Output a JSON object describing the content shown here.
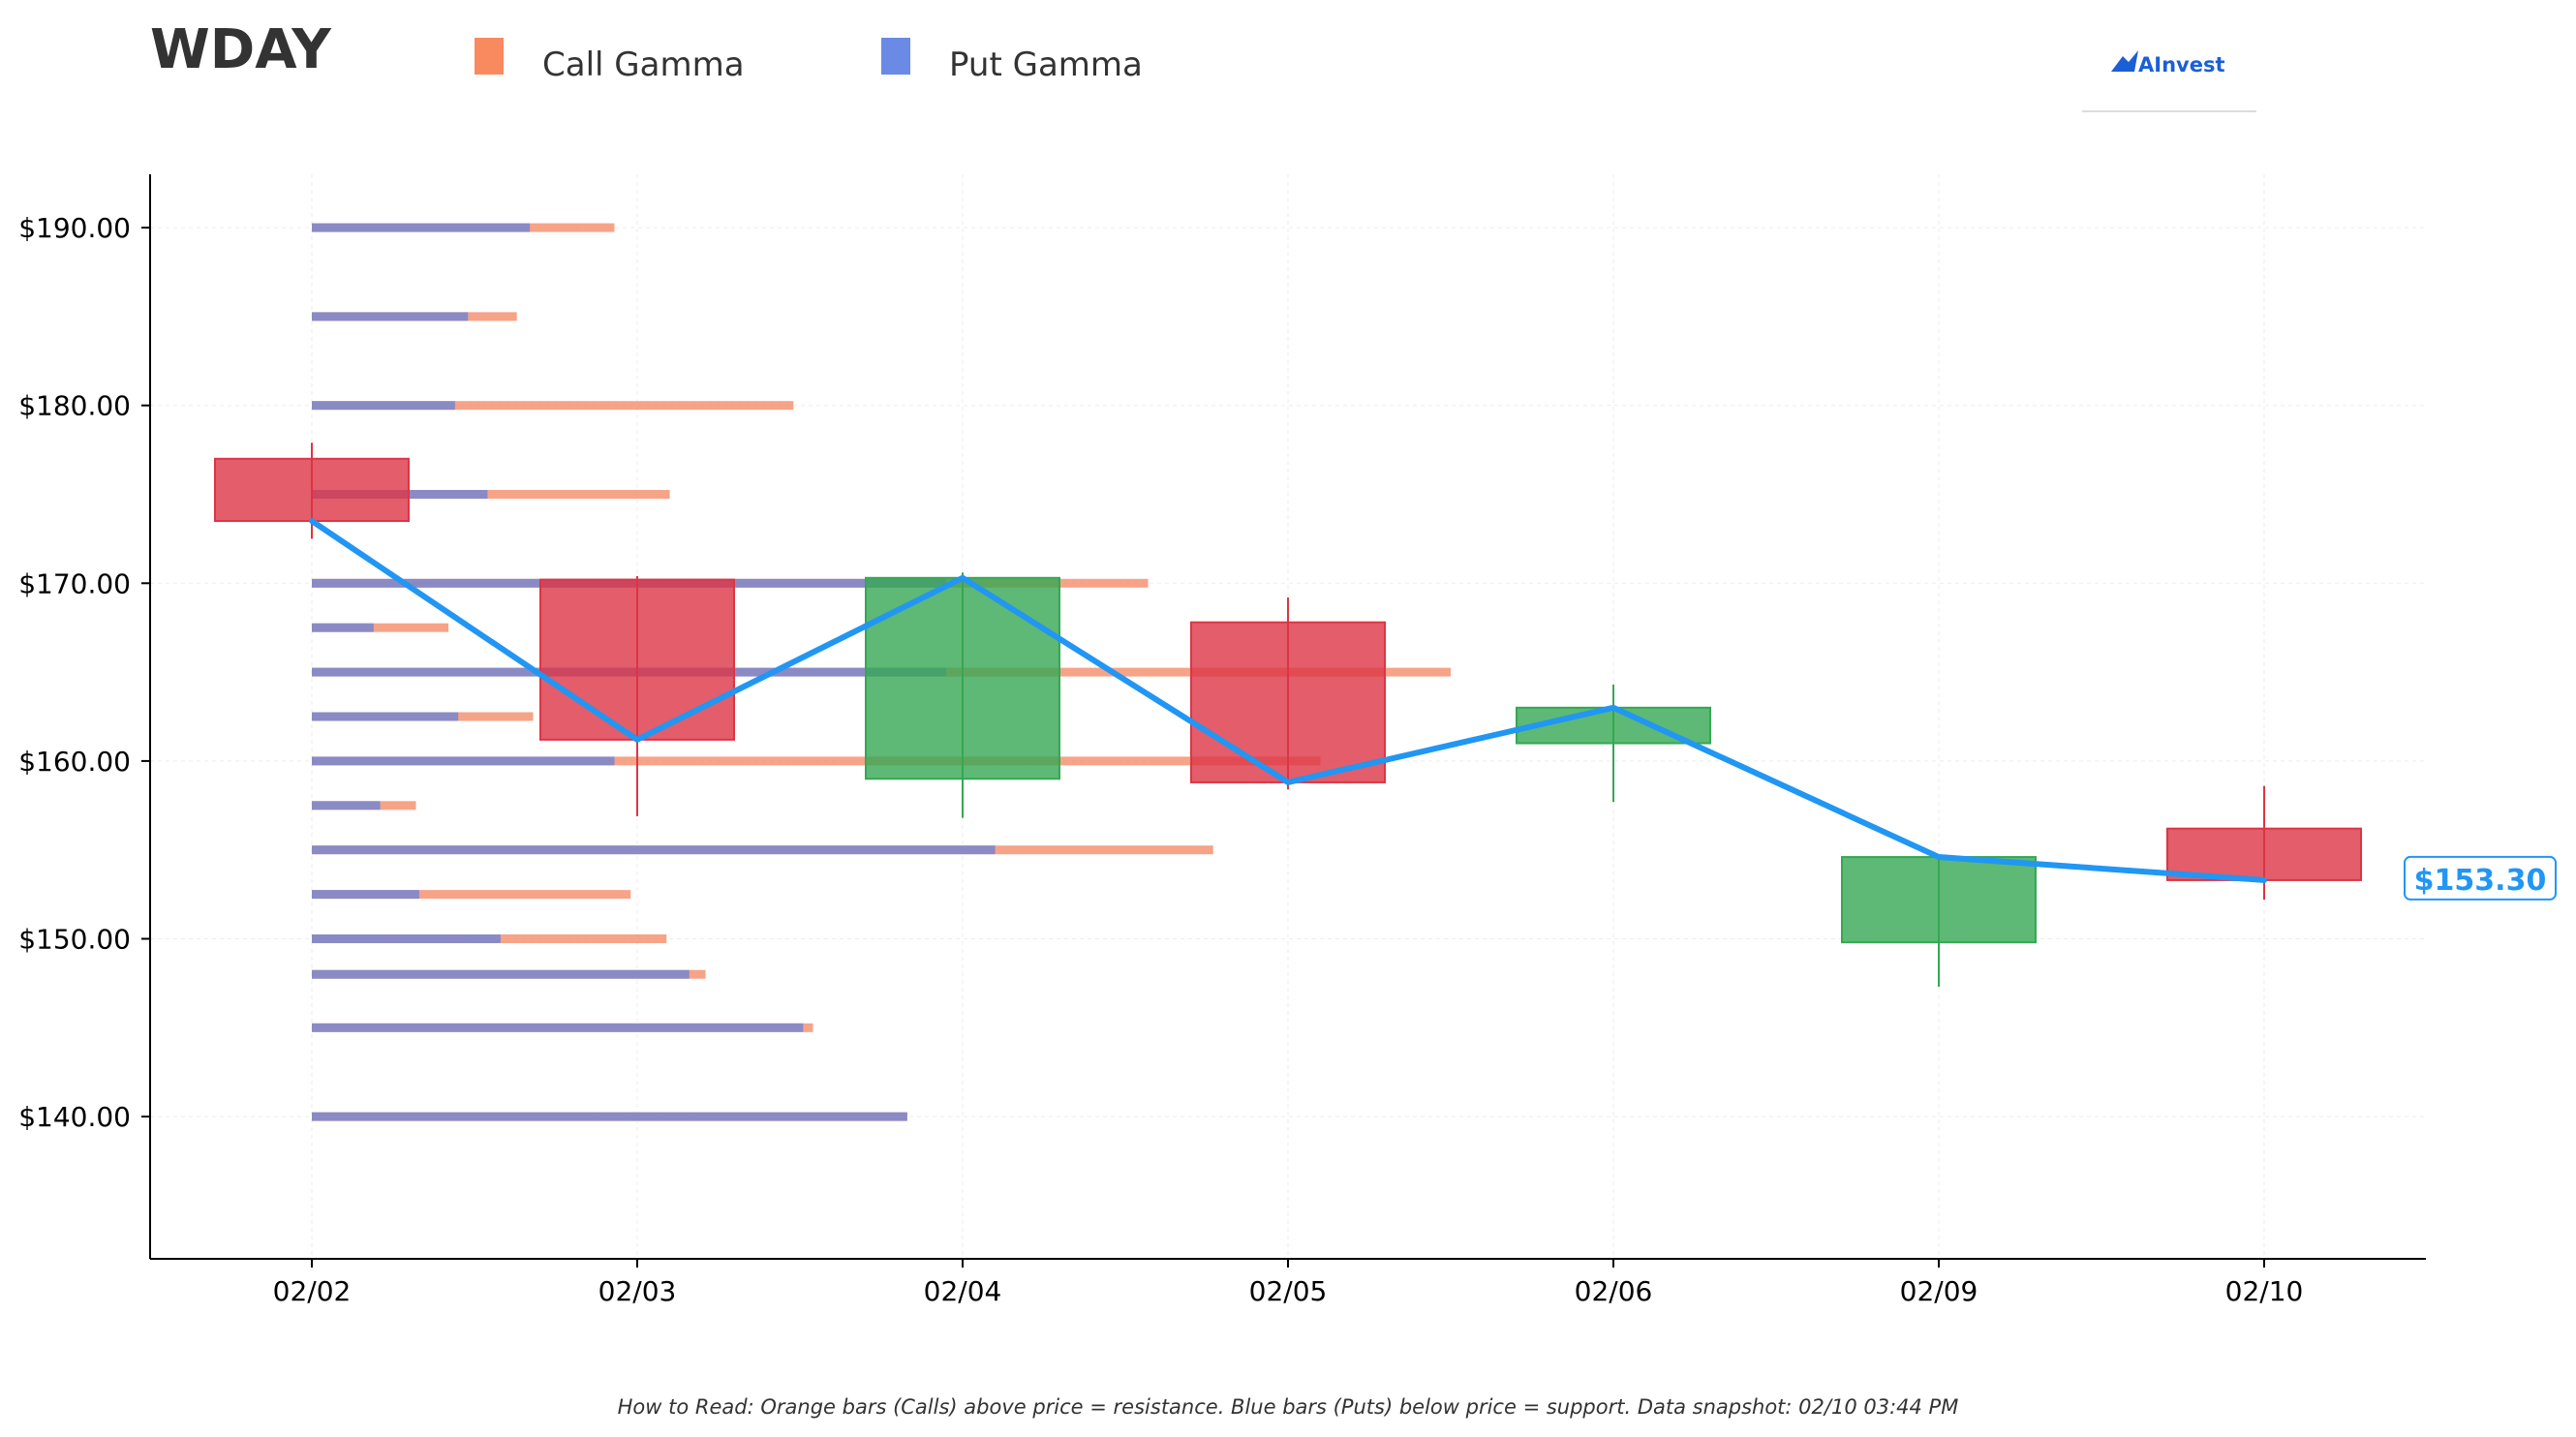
{
  "chart_data": {
    "type": "candlestick",
    "title": "WDAY",
    "legend": [
      "Call Gamma",
      "Put Gamma"
    ],
    "colors": {
      "call": "#f4845f",
      "put": "#5b7fe0",
      "up": "#34a853",
      "down": "#dc3545",
      "price_line": "#2196f3"
    },
    "ylim": [
      132,
      193
    ],
    "yticks": [
      {
        "value": 190,
        "label": "$190.00"
      },
      {
        "value": 180,
        "label": "$180.00"
      },
      {
        "value": 170,
        "label": "$170.00"
      },
      {
        "value": 160,
        "label": "$160.00"
      },
      {
        "value": 150,
        "label": "$150.00"
      },
      {
        "value": 140,
        "label": "$140.00"
      }
    ],
    "dates": [
      "02/02",
      "02/03",
      "02/04",
      "02/05",
      "02/06",
      "02/09",
      "02/10"
    ],
    "candles": [
      {
        "date": "02/02",
        "open": 177.0,
        "high": 177.9,
        "low": 172.5,
        "close": 173.5
      },
      {
        "date": "02/03",
        "open": 170.2,
        "high": 170.4,
        "low": 156.9,
        "close": 161.2
      },
      {
        "date": "02/04",
        "open": 159.0,
        "high": 170.6,
        "low": 156.8,
        "close": 170.3
      },
      {
        "date": "02/05",
        "open": 167.8,
        "high": 169.2,
        "low": 158.4,
        "close": 158.8
      },
      {
        "date": "02/06",
        "open": 161.0,
        "high": 164.3,
        "low": 157.7,
        "close": 163.0
      },
      {
        "date": "02/09",
        "open": 149.8,
        "high": 154.6,
        "low": 147.3,
        "close": 154.6
      },
      {
        "date": "02/10",
        "open": 156.2,
        "high": 158.6,
        "low": 152.2,
        "close": 153.3
      }
    ],
    "close_line": [
      173.5,
      161.2,
      170.3,
      158.8,
      163.0,
      154.6,
      153.3
    ],
    "last_price_label": "$153.30",
    "gamma_levels": [
      {
        "strike": 190.0,
        "put": 0.67,
        "call": 0.93
      },
      {
        "strike": 185.0,
        "put": 0.48,
        "call": 0.63
      },
      {
        "strike": 180.0,
        "put": 0.44,
        "call": 1.48
      },
      {
        "strike": 175.0,
        "put": 0.54,
        "call": 1.1
      },
      {
        "strike": 170.0,
        "put": 1.95,
        "call": 2.57
      },
      {
        "strike": 167.5,
        "put": 0.19,
        "call": 0.42
      },
      {
        "strike": 165.0,
        "put": 1.95,
        "call": 3.5
      },
      {
        "strike": 162.5,
        "put": 0.45,
        "call": 0.68
      },
      {
        "strike": 160.0,
        "put": 0.93,
        "call": 3.1
      },
      {
        "strike": 157.5,
        "put": 0.21,
        "call": 0.32
      },
      {
        "strike": 155.0,
        "put": 2.1,
        "call": 2.77
      },
      {
        "strike": 152.5,
        "put": 0.33,
        "call": 0.98
      },
      {
        "strike": 150.0,
        "put": 0.58,
        "call": 1.09
      },
      {
        "strike": 148.0,
        "put": 1.16,
        "call": 1.21
      },
      {
        "strike": 145.0,
        "put": 1.51,
        "call": 1.54
      },
      {
        "strike": 140.0,
        "put": 1.83,
        "call": 1.83
      }
    ],
    "grid": true
  },
  "brand": {
    "name": "AInvest"
  },
  "footnote": "How to Read: Orange bars (Calls) above price = resistance. Blue bars (Puts) below price = support. Data snapshot: 02/10 03:44 PM"
}
